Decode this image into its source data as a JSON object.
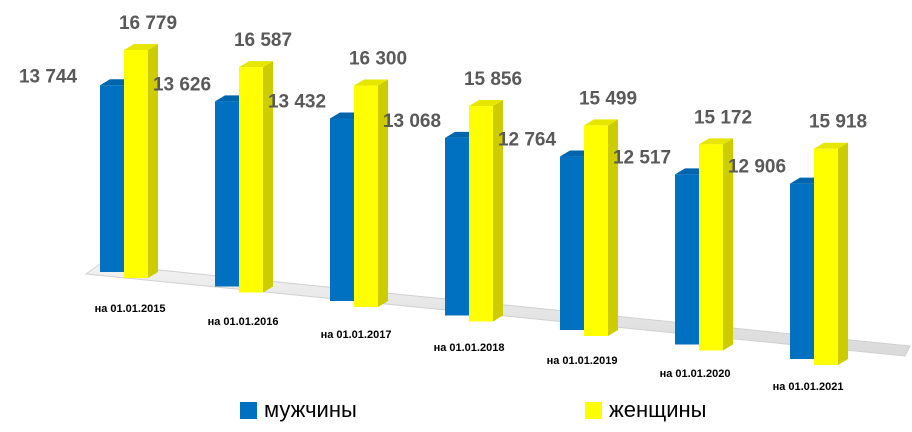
{
  "chart_data": {
    "type": "bar3d",
    "categories": [
      "на 01.01.2015",
      "на 01.01.2016",
      "на 01.01.2017",
      "на 01.01.2018",
      "на 01.01.2019",
      "на 01.01.2020",
      "на 01.01.2021"
    ],
    "series": [
      {
        "name": "мужчины",
        "color": "#0070c0",
        "values": [
          13744,
          13626,
          13432,
          13068,
          12764,
          12517,
          12906
        ],
        "value_labels": [
          "13 744",
          "13 626",
          "13 432",
          "13 068",
          "12 764",
          "12 517",
          "12 906"
        ]
      },
      {
        "name": "женщины",
        "color": "#ffff00",
        "values": [
          16779,
          16587,
          16300,
          15856,
          15499,
          15172,
          15918
        ],
        "value_labels": [
          "16 779",
          "16 587",
          "16 300",
          "15 856",
          "15 499",
          "15 172",
          "15 918"
        ]
      }
    ]
  }
}
